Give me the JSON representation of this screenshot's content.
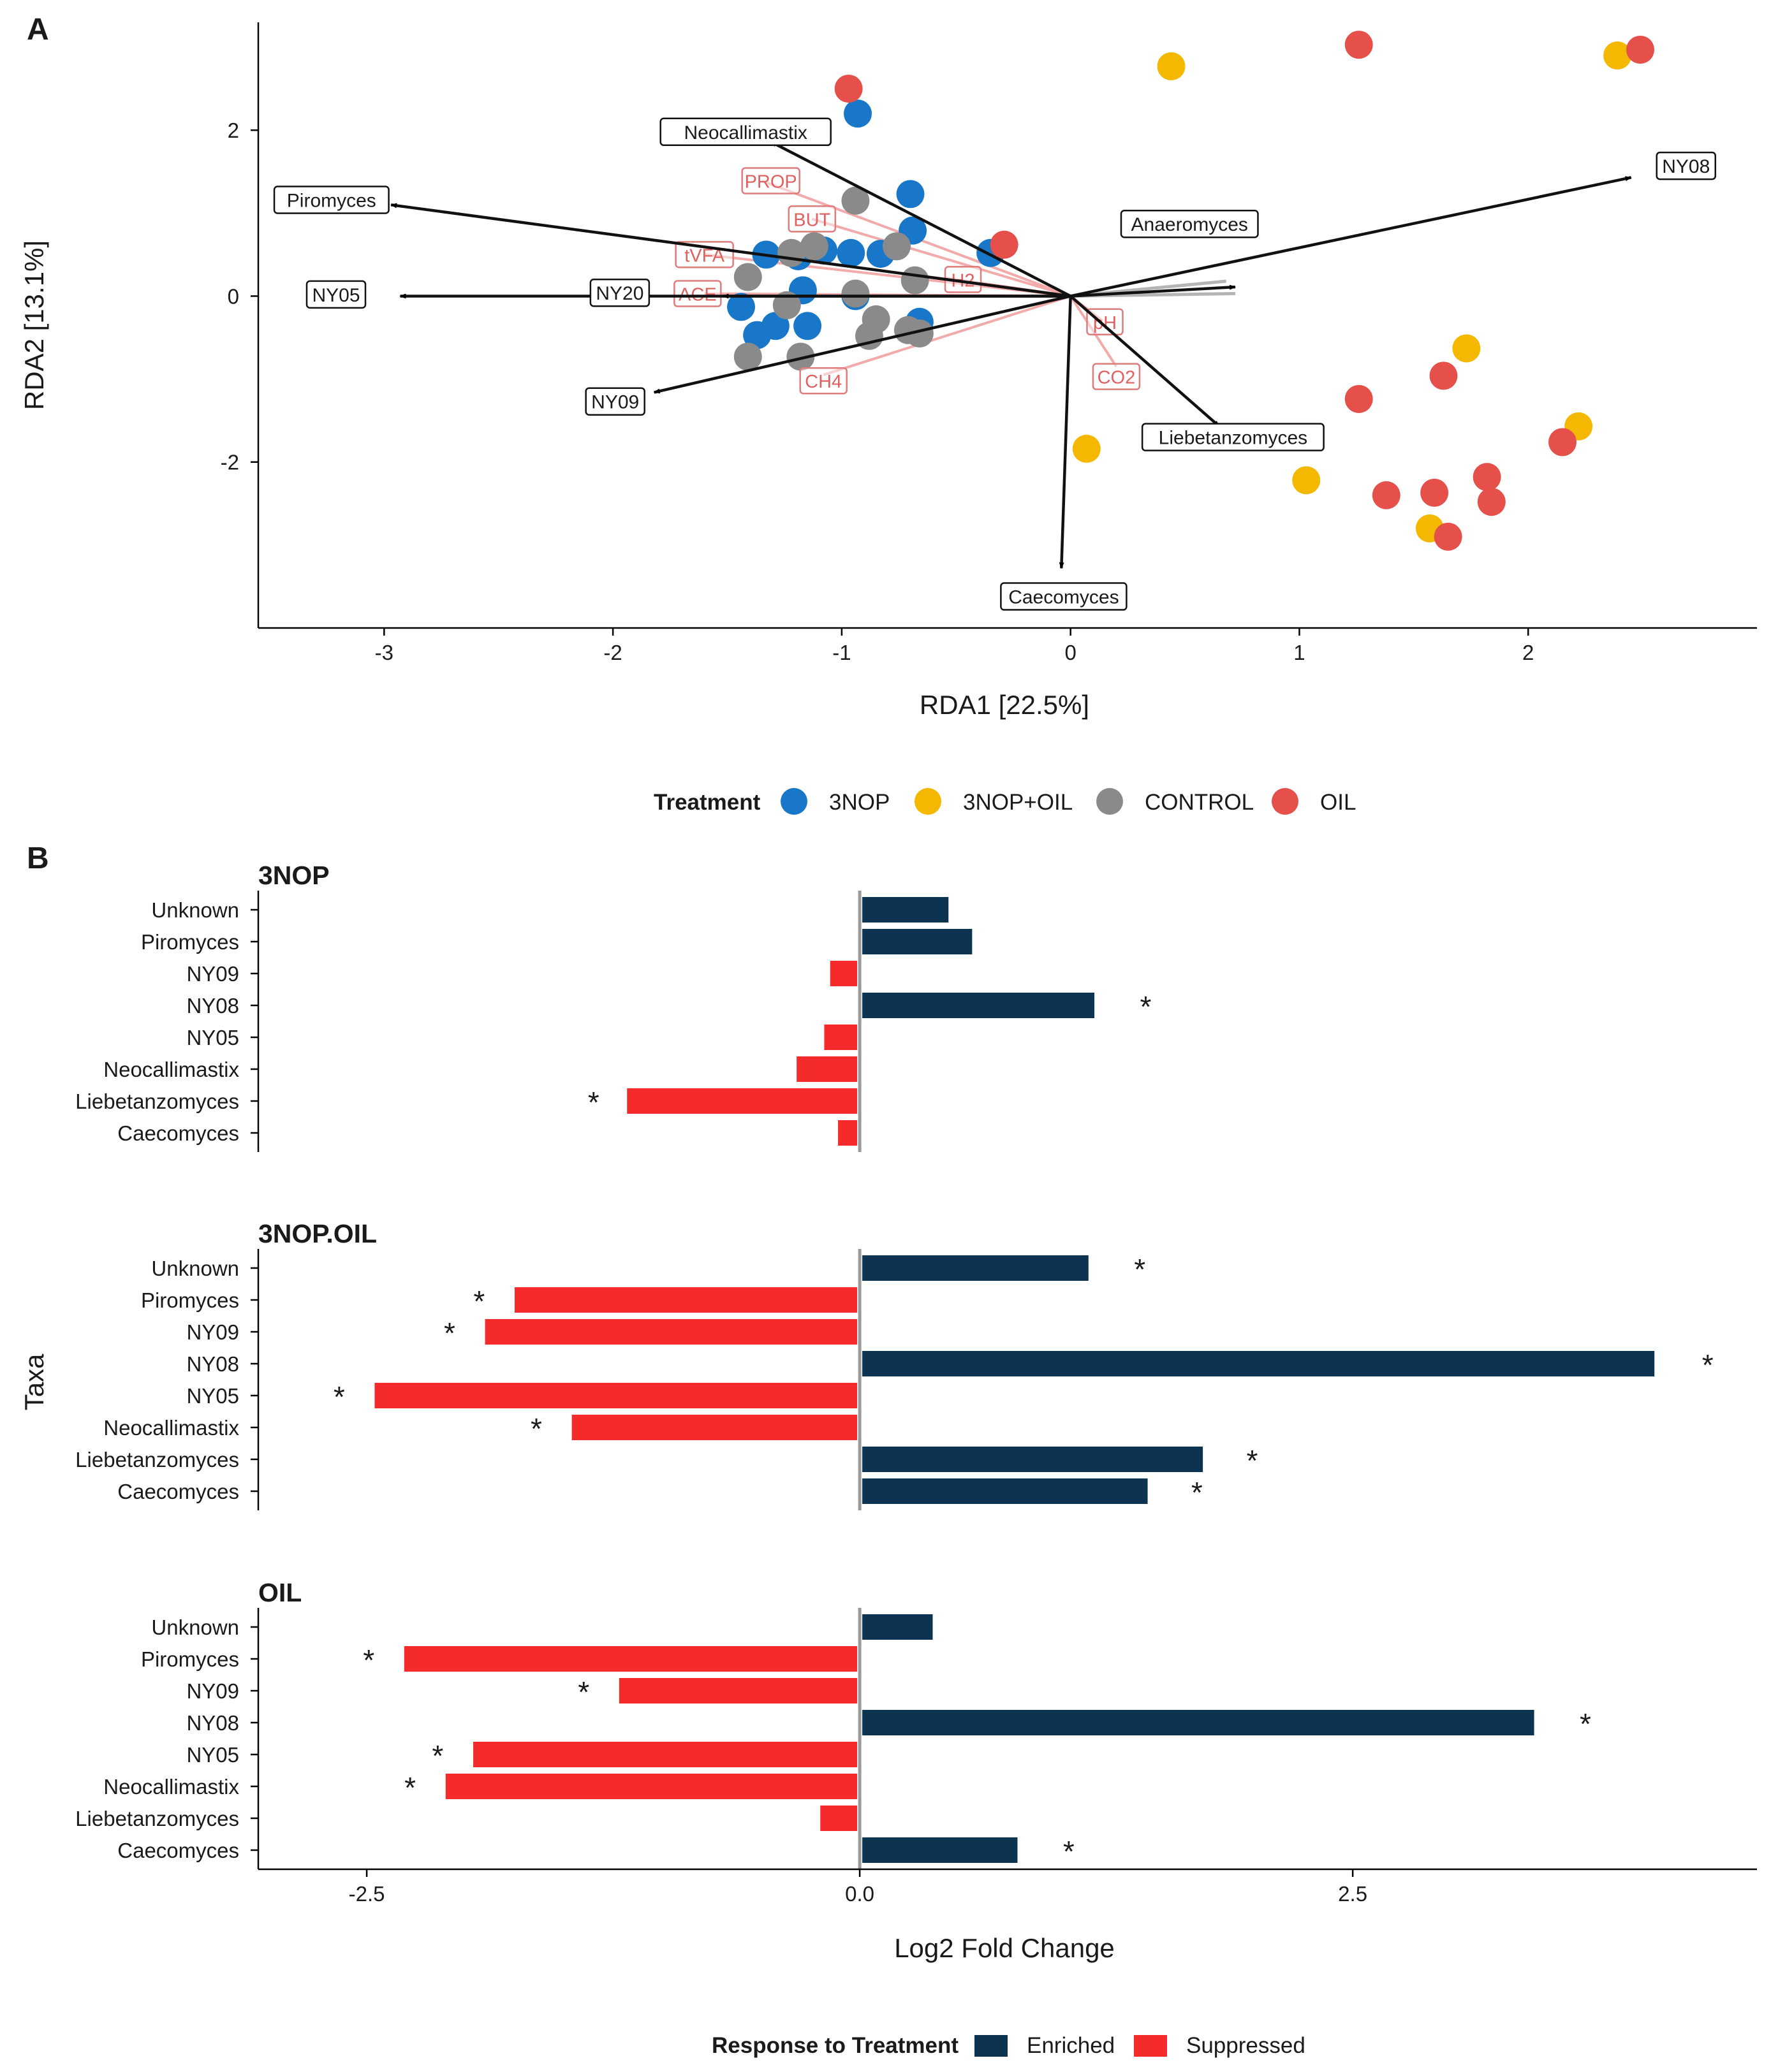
{
  "panel_a": {
    "letter": "A",
    "legend_title": "Treatment",
    "chart_data": {
      "type": "scatter",
      "title": "",
      "xlabel": "RDA1 [22.5%]",
      "ylabel": "RDA2 [13.1%]",
      "xlim": [
        -3.55,
        3.0
      ],
      "ylim": [
        -4.0,
        3.3
      ],
      "xticks": [
        -3,
        -2,
        -1,
        0,
        1,
        2
      ],
      "yticks": [
        -2,
        0,
        2
      ],
      "series": [
        {
          "name": "3NOP",
          "color": "#1877c9",
          "points": [
            [
              -0.93,
              2.2
            ],
            [
              -0.7,
              1.23
            ],
            [
              -0.69,
              0.79
            ],
            [
              -0.35,
              0.52
            ],
            [
              -1.33,
              0.5
            ],
            [
              -1.19,
              0.48
            ],
            [
              -1.08,
              0.55
            ],
            [
              -0.96,
              0.52
            ],
            [
              -0.83,
              0.51
            ],
            [
              -1.17,
              0.07
            ],
            [
              -0.94,
              0.0
            ],
            [
              -1.44,
              -0.13
            ],
            [
              -1.37,
              -0.47
            ],
            [
              -1.29,
              -0.36
            ],
            [
              -1.15,
              -0.36
            ],
            [
              -0.66,
              -0.31
            ]
          ]
        },
        {
          "name": "3NOP+OIL",
          "color": "#f5b800",
          "points": [
            [
              0.44,
              2.77
            ],
            [
              2.39,
              2.9
            ],
            [
              1.73,
              -0.63
            ],
            [
              2.22,
              -1.57
            ],
            [
              1.03,
              -2.22
            ],
            [
              1.57,
              -2.8
            ],
            [
              0.07,
              -1.84
            ]
          ]
        },
        {
          "name": "CONTROL",
          "color": "#8a8a8a",
          "points": [
            [
              -0.94,
              1.15
            ],
            [
              -0.76,
              0.6
            ],
            [
              -1.22,
              0.52
            ],
            [
              -1.12,
              0.6
            ],
            [
              -1.41,
              0.23
            ],
            [
              -1.24,
              -0.11
            ],
            [
              -0.94,
              0.03
            ],
            [
              -0.68,
              0.19
            ],
            [
              -0.85,
              -0.28
            ],
            [
              -0.88,
              -0.48
            ],
            [
              -0.71,
              -0.41
            ],
            [
              -0.66,
              -0.45
            ],
            [
              -1.41,
              -0.73
            ],
            [
              -1.18,
              -0.73
            ]
          ]
        },
        {
          "name": "OIL",
          "color": "#e5504a",
          "points": [
            [
              -0.97,
              2.5
            ],
            [
              1.26,
              3.03
            ],
            [
              2.49,
              2.97
            ],
            [
              -0.29,
              0.62
            ],
            [
              1.63,
              -0.96
            ],
            [
              1.26,
              -1.24
            ],
            [
              2.15,
              -1.76
            ],
            [
              1.82,
              -2.18
            ],
            [
              1.38,
              -2.4
            ],
            [
              1.59,
              -2.37
            ],
            [
              1.84,
              -2.48
            ],
            [
              1.65,
              -2.9
            ]
          ]
        }
      ],
      "species_arrows": [
        {
          "label": "NY08",
          "x": 2.45,
          "y": 1.43
        },
        {
          "label": "Neocallimastix",
          "x": -1.31,
          "y": 1.86
        },
        {
          "label": "Piromyces",
          "x": -2.97,
          "y": 1.1
        },
        {
          "label": "Anaeromyces",
          "x": 0.72,
          "y": 0.11
        },
        {
          "label": "NY05",
          "x": -2.93,
          "y": 0.0
        },
        {
          "label": "NY20",
          "x": -1.52,
          "y": 0.0
        },
        {
          "label": "NY09",
          "x": -1.82,
          "y": -1.16
        },
        {
          "label": "Liebetanzomyces",
          "x": 0.65,
          "y": -1.57
        },
        {
          "label": "Caecomyces",
          "x": -0.04,
          "y": -3.28
        }
      ],
      "env_arrows": [
        {
          "label": "PROP",
          "x": -1.35,
          "y": 1.39
        },
        {
          "label": "BUT",
          "x": -1.13,
          "y": 0.93
        },
        {
          "label": "tVFA",
          "x": -1.6,
          "y": 0.5
        },
        {
          "label": "H2",
          "x": -0.55,
          "y": 0.22
        },
        {
          "label": "ACE",
          "x": -1.6,
          "y": 0.03
        },
        {
          "label": "CH4",
          "x": -1.08,
          "y": -0.95
        },
        {
          "label": "pH",
          "x": 0.14,
          "y": -0.3
        },
        {
          "label": "CO2",
          "x": 0.2,
          "y": -0.85
        }
      ],
      "grey_lines": [
        {
          "x": 0.68,
          "y": 0.18
        },
        {
          "x": 0.72,
          "y": 0.03
        }
      ],
      "species_label_pos": [
        {
          "label": "NY08",
          "x": 2.69,
          "y": 1.57
        },
        {
          "label": "Neocallimastix",
          "x": -1.42,
          "y": 1.98
        },
        {
          "label": "Piromyces",
          "x": -3.23,
          "y": 1.16
        },
        {
          "label": "Anaeromyces",
          "x": 0.52,
          "y": 0.87
        },
        {
          "label": "NY05",
          "x": -3.21,
          "y": 0.02
        },
        {
          "label": "NY20",
          "x": -1.97,
          "y": 0.04
        },
        {
          "label": "NY09",
          "x": -1.99,
          "y": -1.27
        },
        {
          "label": "Liebetanzomyces",
          "x": 0.71,
          "y": -1.7
        },
        {
          "label": "Caecomyces",
          "x": -0.03,
          "y": -3.62
        }
      ],
      "env_label_pos": [
        {
          "label": "PROP",
          "x": -1.31,
          "y": 1.39
        },
        {
          "label": "BUT",
          "x": -1.13,
          "y": 0.93
        },
        {
          "label": "tVFA",
          "x": -1.6,
          "y": 0.5
        },
        {
          "label": "H2",
          "x": -0.47,
          "y": 0.2
        },
        {
          "label": "ACE",
          "x": -1.63,
          "y": 0.03
        },
        {
          "label": "CH4",
          "x": -1.08,
          "y": -1.02
        },
        {
          "label": "pH",
          "x": 0.15,
          "y": -0.31
        },
        {
          "label": "CO2",
          "x": 0.2,
          "y": -0.97
        }
      ]
    }
  },
  "panel_b": {
    "letter": "B",
    "legend_title": "Response to Treatment",
    "legend": [
      {
        "name": "Enriched",
        "color": "#0c3450"
      },
      {
        "name": "Suppressed",
        "color": "#f52a2a"
      }
    ],
    "chart_data": {
      "type": "bar",
      "orientation": "horizontal",
      "title": "",
      "xlabel": "Log2 Fold Change",
      "ylabel": "Taxa",
      "xlim": [
        -3.05,
        4.55
      ],
      "xticks": [
        -2.5,
        0.0,
        2.5
      ],
      "xtick_labels": [
        "-2.5",
        "0.0",
        "2.5"
      ],
      "categories": [
        "Unknown",
        "Piromyces",
        "NY09",
        "NY08",
        "NY05",
        "Neocallimastix",
        "Liebetanzomyces",
        "Caecomyces"
      ],
      "facets": [
        {
          "name": "3NOP",
          "values": [
            0.45,
            0.57,
            -0.15,
            1.19,
            -0.18,
            -0.32,
            -1.18,
            -0.11
          ],
          "significant": [
            false,
            false,
            false,
            true,
            false,
            false,
            true,
            false
          ],
          "star_x": [
            null,
            null,
            null,
            1.45,
            null,
            null,
            -1.35,
            null
          ]
        },
        {
          "name": "3NOP.OIL",
          "values": [
            1.16,
            -1.75,
            -1.9,
            4.03,
            -2.46,
            -1.46,
            1.74,
            1.46
          ],
          "significant": [
            true,
            true,
            true,
            true,
            true,
            true,
            true,
            true
          ],
          "star_x": [
            1.42,
            -1.93,
            -2.08,
            4.3,
            -2.64,
            -1.64,
            1.99,
            1.71
          ]
        },
        {
          "name": "OIL",
          "values": [
            0.37,
            -2.31,
            -1.22,
            3.42,
            -1.96,
            -2.1,
            -0.2,
            0.8
          ],
          "significant": [
            false,
            true,
            true,
            true,
            true,
            true,
            false,
            true
          ],
          "star_x": [
            null,
            -2.49,
            -1.4,
            3.68,
            -2.14,
            -2.28,
            null,
            1.06
          ]
        }
      ]
    }
  }
}
